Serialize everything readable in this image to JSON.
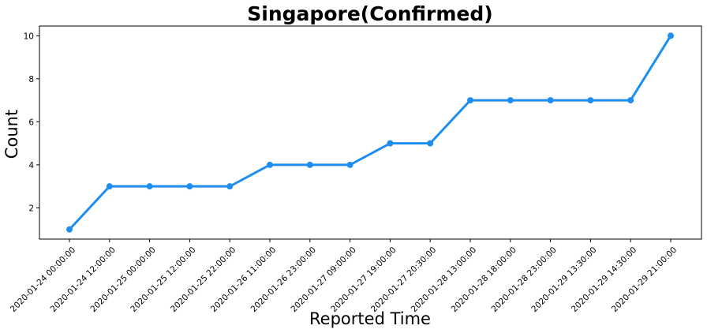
{
  "chart_data": {
    "type": "line",
    "title": "Singapore(Confirmed)",
    "xlabel": "Reported Time",
    "ylabel": "Count",
    "categories": [
      "2020-01-24 00:00:00",
      "2020-01-24 12:00:00",
      "2020-01-25 00:00:00",
      "2020-01-25 12:00:00",
      "2020-01-25 22:00:00",
      "2020-01-26 11:00:00",
      "2020-01-26 23:00:00",
      "2020-01-27 09:00:00",
      "2020-01-27 19:00:00",
      "2020-01-27 20:30:00",
      "2020-01-28 13:00:00",
      "2020-01-28 18:00:00",
      "2020-01-28 23:00:00",
      "2020-01-29 13:30:00",
      "2020-01-29 14:30:00",
      "2020-01-29 21:00:00"
    ],
    "series": [
      {
        "values": [
          1,
          3,
          3,
          3,
          3,
          4,
          4,
          4,
          5,
          5,
          7,
          7,
          7,
          7,
          7,
          10
        ]
      }
    ],
    "yticks": [
      2,
      4,
      6,
      8,
      10
    ],
    "ylim": [
      0.55,
      10.45
    ],
    "grid": false,
    "line_color": "#1f8ef1"
  }
}
